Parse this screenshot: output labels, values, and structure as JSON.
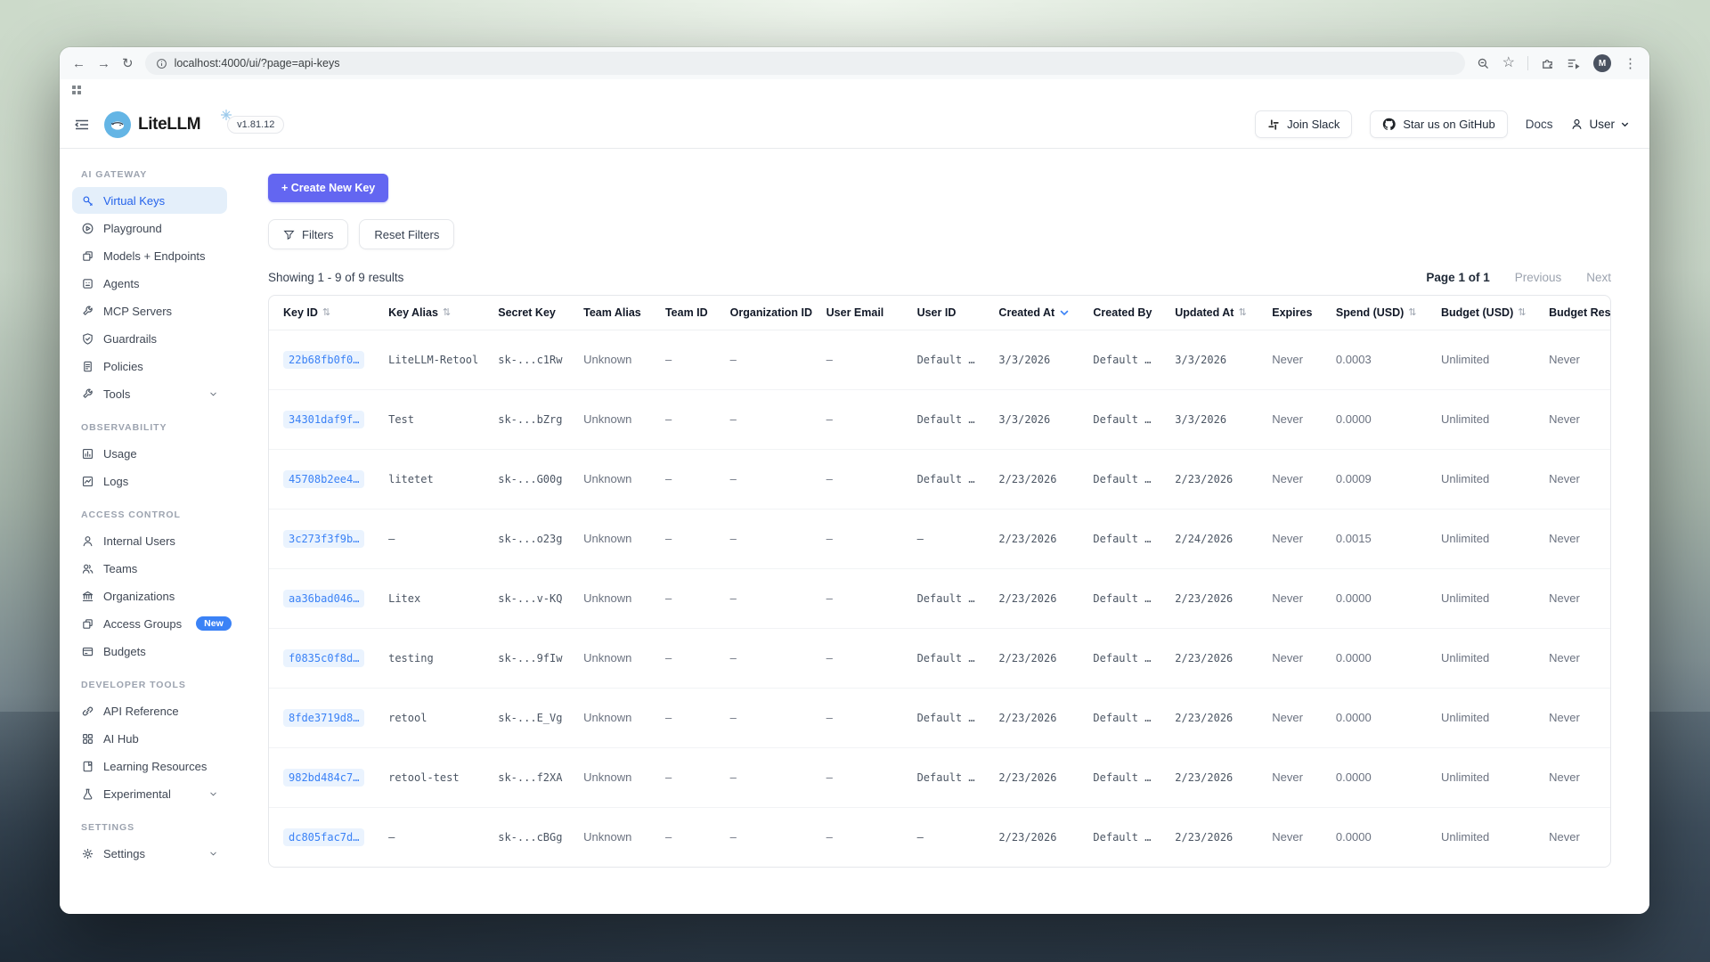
{
  "browser": {
    "url": "localhost:4000/ui/?page=api-keys",
    "avatar_initial": "M"
  },
  "app_header": {
    "brand": "LiteLLM",
    "version": "v1.81.12",
    "join_slack": "Join Slack",
    "star_github": "Star us on GitHub",
    "docs": "Docs",
    "user": "User"
  },
  "sidebar": {
    "sections": [
      {
        "title": "AI GATEWAY",
        "items": [
          {
            "label": "Virtual Keys",
            "icon": "key",
            "active": true
          },
          {
            "label": "Playground",
            "icon": "play"
          },
          {
            "label": "Models + Endpoints",
            "icon": "models"
          },
          {
            "label": "Agents",
            "icon": "agents"
          },
          {
            "label": "MCP Servers",
            "icon": "wrench"
          },
          {
            "label": "Guardrails",
            "icon": "shield"
          },
          {
            "label": "Policies",
            "icon": "policies"
          },
          {
            "label": "Tools",
            "icon": "wrench",
            "chevron": true
          }
        ]
      },
      {
        "title": "OBSERVABILITY",
        "items": [
          {
            "label": "Usage",
            "icon": "usage"
          },
          {
            "label": "Logs",
            "icon": "logs"
          }
        ]
      },
      {
        "title": "ACCESS CONTROL",
        "items": [
          {
            "label": "Internal Users",
            "icon": "user"
          },
          {
            "label": "Teams",
            "icon": "users"
          },
          {
            "label": "Organizations",
            "icon": "bank"
          },
          {
            "label": "Access Groups",
            "icon": "models",
            "badge": "New"
          },
          {
            "label": "Budgets",
            "icon": "budgets"
          }
        ]
      },
      {
        "title": "DEVELOPER TOOLS",
        "items": [
          {
            "label": "API Reference",
            "icon": "api"
          },
          {
            "label": "AI Hub",
            "icon": "hub"
          },
          {
            "label": "Learning Resources",
            "icon": "learn"
          },
          {
            "label": "Experimental",
            "icon": "flask",
            "chevron": true
          }
        ]
      },
      {
        "title": "SETTINGS",
        "items": [
          {
            "label": "Settings",
            "icon": "gear",
            "chevron": true
          }
        ]
      }
    ]
  },
  "main": {
    "create_key_label": "+ Create New Key",
    "filters_label": "Filters",
    "reset_filters_label": "Reset Filters",
    "results_text": "Showing 1 - 9 of 9 results",
    "pagination": {
      "page_info": "Page 1 of 1",
      "previous": "Previous",
      "next": "Next"
    }
  },
  "table": {
    "columns": [
      {
        "label": "Key ID",
        "sort": "both"
      },
      {
        "label": "Key Alias",
        "sort": "both"
      },
      {
        "label": "Secret Key",
        "sort": "none"
      },
      {
        "label": "Team Alias",
        "sort": "none"
      },
      {
        "label": "Team ID",
        "sort": "none"
      },
      {
        "label": "Organization ID",
        "sort": "none"
      },
      {
        "label": "User Email",
        "sort": "none"
      },
      {
        "label": "User ID",
        "sort": "none"
      },
      {
        "label": "Created At",
        "sort": "active-desc"
      },
      {
        "label": "Created By",
        "sort": "none"
      },
      {
        "label": "Updated At",
        "sort": "both"
      },
      {
        "label": "Expires",
        "sort": "none"
      },
      {
        "label": "Spend (USD)",
        "sort": "both"
      },
      {
        "label": "Budget (USD)",
        "sort": "both"
      },
      {
        "label": "Budget Reset",
        "sort": "none"
      }
    ],
    "rows": [
      [
        "22b68fb0f0…",
        "LiteLLM-Retool",
        "sk-...c1Rw",
        "Unknown",
        "–",
        "–",
        "–",
        "Default …",
        "3/3/2026",
        "Default …",
        "3/3/2026",
        "Never",
        "0.0003",
        "Unlimited",
        "Never"
      ],
      [
        "34301daf9f…",
        "Test",
        "sk-...bZrg",
        "Unknown",
        "–",
        "–",
        "–",
        "Default …",
        "3/3/2026",
        "Default …",
        "3/3/2026",
        "Never",
        "0.0000",
        "Unlimited",
        "Never"
      ],
      [
        "45708b2ee4…",
        "litetet",
        "sk-...G00g",
        "Unknown",
        "–",
        "–",
        "–",
        "Default …",
        "2/23/2026",
        "Default …",
        "2/23/2026",
        "Never",
        "0.0009",
        "Unlimited",
        "Never"
      ],
      [
        "3c273f3f9b…",
        "–",
        "sk-...o23g",
        "Unknown",
        "–",
        "–",
        "–",
        "–",
        "2/23/2026",
        "Default …",
        "2/24/2026",
        "Never",
        "0.0015",
        "Unlimited",
        "Never"
      ],
      [
        "aa36bad046…",
        "Litex",
        "sk-...v-KQ",
        "Unknown",
        "–",
        "–",
        "–",
        "Default …",
        "2/23/2026",
        "Default …",
        "2/23/2026",
        "Never",
        "0.0000",
        "Unlimited",
        "Never"
      ],
      [
        "f0835c0f8d…",
        "testing",
        "sk-...9fIw",
        "Unknown",
        "–",
        "–",
        "–",
        "Default …",
        "2/23/2026",
        "Default …",
        "2/23/2026",
        "Never",
        "0.0000",
        "Unlimited",
        "Never"
      ],
      [
        "8fde3719d8…",
        "retool",
        "sk-...E_Vg",
        "Unknown",
        "–",
        "–",
        "–",
        "Default …",
        "2/23/2026",
        "Default …",
        "2/23/2026",
        "Never",
        "0.0000",
        "Unlimited",
        "Never"
      ],
      [
        "982bd484c7…",
        "retool-test",
        "sk-...f2XA",
        "Unknown",
        "–",
        "–",
        "–",
        "Default …",
        "2/23/2026",
        "Default …",
        "2/23/2026",
        "Never",
        "0.0000",
        "Unlimited",
        "Never"
      ],
      [
        "dc805fac7d…",
        "–",
        "sk-...cBGg",
        "Unknown",
        "–",
        "–",
        "–",
        "–",
        "2/23/2026",
        "Default …",
        "2/23/2026",
        "Never",
        "0.0000",
        "Unlimited",
        "Never"
      ]
    ]
  },
  "colors": {
    "accent": "#6366f1",
    "link": "#3b82f6",
    "active_item_bg": "#e4effa",
    "badge": "#3b82f6"
  }
}
